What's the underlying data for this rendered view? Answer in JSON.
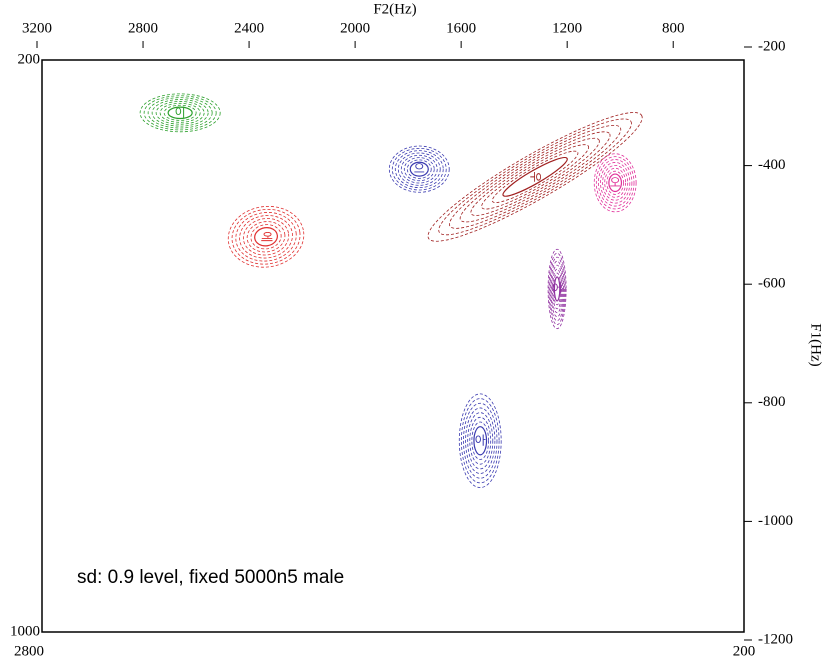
{
  "chart_data": {
    "type": "ellipse",
    "x2_label": "F2(Hz)",
    "y2_label": "F1(Hz)",
    "annotation": "sd: 0.9 level, fixed 5000n5 male",
    "annotation_color": "#8b1a9a",
    "xlim": [
      2800,
      200
    ],
    "xticks": [
      2800,
      200
    ],
    "ylim": [
      1000,
      200
    ],
    "yticks": [
      1000,
      200
    ],
    "x2lim": [
      3200,
      533
    ],
    "x2ticks": [
      3200,
      2800,
      2400,
      2000,
      1600,
      1200,
      800
    ],
    "y2lim": [
      -200,
      -1200
    ],
    "y2ticks": [
      -200,
      -400,
      -600,
      -800,
      -1000,
      -1200
    ],
    "rings": 8,
    "points": [
      {
        "label": "이",
        "color": "#2ca02c",
        "f2": 2660,
        "f1": -311,
        "rx": 151,
        "ry": 32,
        "angle": 0
      },
      {
        "label": "에",
        "color": "#e03030",
        "f2": 2336,
        "f1": -520,
        "rx": 143,
        "ry": 51,
        "angle": -8
      },
      {
        "label": "으",
        "color": "#3a3ab0",
        "f2": 1758,
        "f1": -406,
        "rx": 113,
        "ry": 39,
        "angle": 0
      },
      {
        "label": "우",
        "color": "#a02020",
        "f2": 1321,
        "f1": -419,
        "rx": 464,
        "ry": 37,
        "angle": -30
      },
      {
        "label": "오",
        "color": "#e0309a",
        "f2": 1019,
        "f1": -429,
        "rx": 79,
        "ry": 49,
        "angle": 0
      },
      {
        "label": "어",
        "color": "#9030a0",
        "f2": 1238,
        "f1": -608,
        "rx": 34,
        "ry": 67,
        "angle": 0
      },
      {
        "label": "아",
        "color": "#3a3ab0",
        "f2": 1528,
        "f1": -864,
        "rx": 79,
        "ry": 79,
        "angle": 0
      }
    ]
  }
}
